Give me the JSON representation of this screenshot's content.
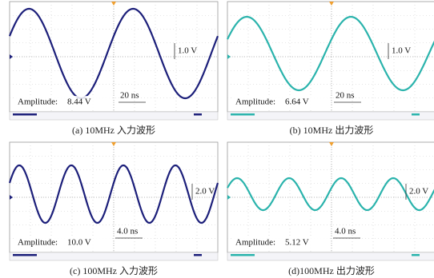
{
  "panels": [
    {
      "caption": "(a) 10MHz 入力波形",
      "amplitude_label": "Amplitude:",
      "amplitude": "8.44 V",
      "volt_scale": "1.0 V",
      "time_scale": "20 ns"
    },
    {
      "caption": "(b) 10MHz 出力波形",
      "amplitude_label": "Amplitude:",
      "amplitude": "6.64 V",
      "volt_scale": "1.0 V",
      "time_scale": "20 ns"
    },
    {
      "caption": "(c) 100MHz 入力波形",
      "amplitude_label": "Amplitude:",
      "amplitude": "10.0 V",
      "volt_scale": "2.0 V",
      "time_scale": "4.0 ns"
    },
    {
      "caption": "(d)100MHz 出力波形",
      "amplitude_label": "Amplitude:",
      "amplitude": "5.12 V",
      "volt_scale": "2.0 V",
      "time_scale": "4.0 ns"
    }
  ]
}
